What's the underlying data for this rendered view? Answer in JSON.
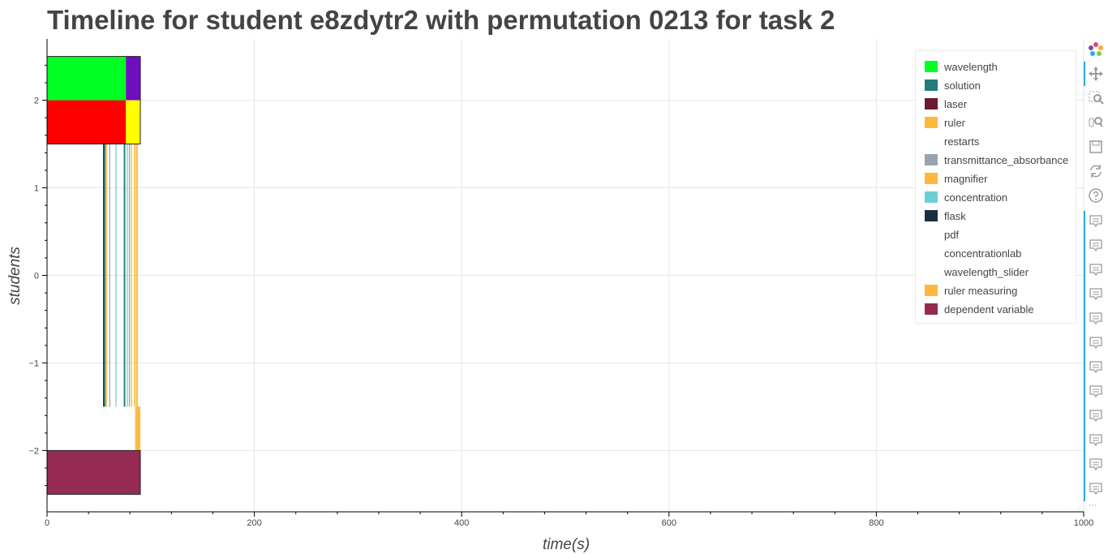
{
  "title": "Timeline for student e8zdytr2 with permutation 0213 for task 2",
  "chart_data": {
    "type": "bar",
    "orientation": "horizontal-timeline",
    "title": "Timeline for student e8zdytr2 with permutation 0213 for task 2",
    "xlabel": "time(s)",
    "ylabel": "students",
    "xlim": [
      0,
      1000
    ],
    "ylim": [
      -2.7,
      2.7
    ],
    "x_ticks": [
      0,
      200,
      400,
      600,
      800,
      1000
    ],
    "y_ticks": [
      -2,
      -1,
      0,
      1,
      2
    ],
    "grid": true,
    "legend_position": "top-right",
    "series": [
      {
        "name": "wavelength",
        "color": "#00ff23",
        "segments": [
          [
            0,
            76,
            2.0,
            2.5
          ]
        ]
      },
      {
        "name": "solution",
        "color": "#227c7a",
        "segments": [
          [
            55,
            56.5,
            -1.5,
            1.5
          ],
          [
            74,
            75.5,
            -1.5,
            1.5
          ]
        ]
      },
      {
        "name": "laser",
        "color": "#6b1a2f",
        "segments": []
      },
      {
        "name": "ruler",
        "color": "#fdb93b",
        "segments": [
          [
            57,
            58,
            -1.5,
            1.5
          ],
          [
            81,
            82,
            -1.5,
            1.5
          ],
          [
            84,
            85.5,
            -1.5,
            1.5
          ],
          [
            86,
            87.5,
            -1.5,
            1.5
          ]
        ]
      },
      {
        "name": "restarts",
        "color": "#ffffff",
        "segments": []
      },
      {
        "name": "transmittance_absorbance",
        "color": "#99a3b2",
        "segments": [
          [
            60,
            61,
            -1.5,
            1.5
          ],
          [
            79,
            80,
            -1.5,
            1.5
          ]
        ]
      },
      {
        "name": "magnifier",
        "color": "#fdb93b",
        "segments": [
          [
            86,
            88,
            -2.0,
            -1.5
          ],
          [
            88,
            90,
            -2.0,
            -1.5
          ]
        ]
      },
      {
        "name": "concentration",
        "color": "#6dcfd6",
        "segments": [
          [
            66,
            67,
            -1.5,
            1.5
          ],
          [
            77,
            78,
            -1.5,
            1.5
          ]
        ]
      },
      {
        "name": "flask",
        "color": "#1b2e43",
        "segments": [
          [
            54,
            55,
            -1.5,
            1.5
          ]
        ]
      },
      {
        "name": "pdf",
        "color": "#ffffff",
        "segments": []
      },
      {
        "name": "concentrationlab",
        "color": "#ffffff",
        "segments": []
      },
      {
        "name": "wavelength_slider",
        "color": "#ffffff",
        "segments": []
      },
      {
        "name": "ruler measuring",
        "color": "#fdb93b",
        "segments": [
          [
            85,
            86,
            -2.0,
            -1.5
          ]
        ]
      },
      {
        "name": "dependent variable",
        "color": "#952b52",
        "segments": [
          [
            0,
            90,
            -2.5,
            -2.0
          ]
        ]
      }
    ],
    "top_row_extra": [
      {
        "color": "#6e0ebf",
        "segment": [
          76,
          90,
          2.0,
          2.5
        ]
      },
      {
        "color": "#ff0000",
        "segment": [
          0,
          76,
          1.5,
          2.0
        ]
      },
      {
        "color": "#ffff00",
        "segment": [
          76,
          90,
          1.5,
          2.0
        ]
      }
    ]
  },
  "toolbar": {
    "logo_icon": "bokeh-logo-icon",
    "tools": [
      "pan-icon",
      "box-zoom-icon",
      "wheel-zoom-icon",
      "save-icon",
      "reset-icon",
      "help-icon"
    ],
    "hover_count": 12,
    "more_label": "⋯"
  }
}
